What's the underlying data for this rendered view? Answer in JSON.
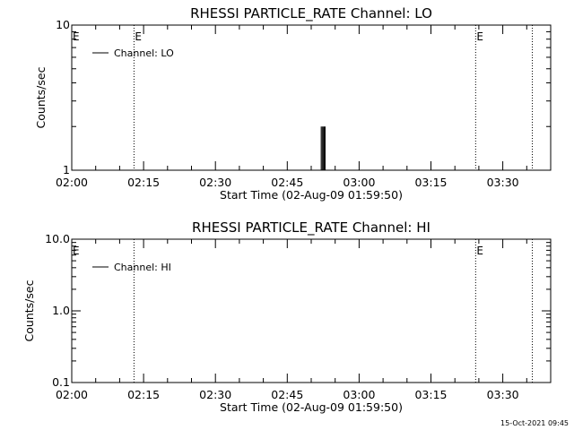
{
  "chart_data": [
    {
      "type": "line",
      "title": "RHESSI PARTICLE_RATE Channel: LO",
      "xlabel": "Start Time (02-Aug-09 01:59:50)",
      "ylabel": "Counts/sec",
      "y_scale": "log",
      "ylim": [
        1,
        10
      ],
      "y_ticks": [
        "1",
        "10"
      ],
      "xlim": [
        "02:00",
        "03:40"
      ],
      "x_ticks": [
        "02:00",
        "02:15",
        "02:30",
        "02:45",
        "03:00",
        "03:15",
        "03:30"
      ],
      "legend": {
        "position": "top-left",
        "entries": [
          "Channel: LO"
        ]
      },
      "series": [
        {
          "name": "Channel: LO",
          "color": "#000000",
          "x": [
            "02:52:05",
            "02:52:18",
            "02:52:30",
            "02:52:43",
            "02:52:55"
          ],
          "y": [
            2,
            2,
            2,
            2,
            2
          ]
        }
      ],
      "vertical_lines": [
        {
          "x": "02:13:00",
          "style": "dotted",
          "label": "E"
        },
        {
          "x": "03:24:20",
          "style": "dotted",
          "label": "E"
        },
        {
          "x": "03:36:10",
          "style": "dotted",
          "label": ""
        }
      ],
      "start_marker": "E",
      "grid": false
    },
    {
      "type": "line",
      "title": "RHESSI PARTICLE_RATE Channel: HI",
      "xlabel": "Start Time (02-Aug-09 01:59:50)",
      "ylabel": "Counts/sec",
      "y_scale": "log",
      "ylim": [
        0.1,
        10
      ],
      "y_ticks": [
        "0.1",
        "1.0",
        "10.0"
      ],
      "xlim": [
        "02:00",
        "03:40"
      ],
      "x_ticks": [
        "02:00",
        "02:15",
        "02:30",
        "02:45",
        "03:00",
        "03:15",
        "03:30"
      ],
      "legend": {
        "position": "top-left",
        "entries": [
          "Channel: HI"
        ]
      },
      "series": [
        {
          "name": "Channel: HI",
          "color": "#000000",
          "x": [],
          "y": []
        }
      ],
      "vertical_lines": [
        {
          "x": "02:13:00",
          "style": "dotted",
          "label": ""
        },
        {
          "x": "03:24:20",
          "style": "dotted",
          "label": "E"
        },
        {
          "x": "03:36:10",
          "style": "dotted",
          "label": ""
        }
      ],
      "start_marker": "E",
      "grid": false
    }
  ],
  "footer": {
    "timestamp": "15-Oct-2021 09:45"
  }
}
